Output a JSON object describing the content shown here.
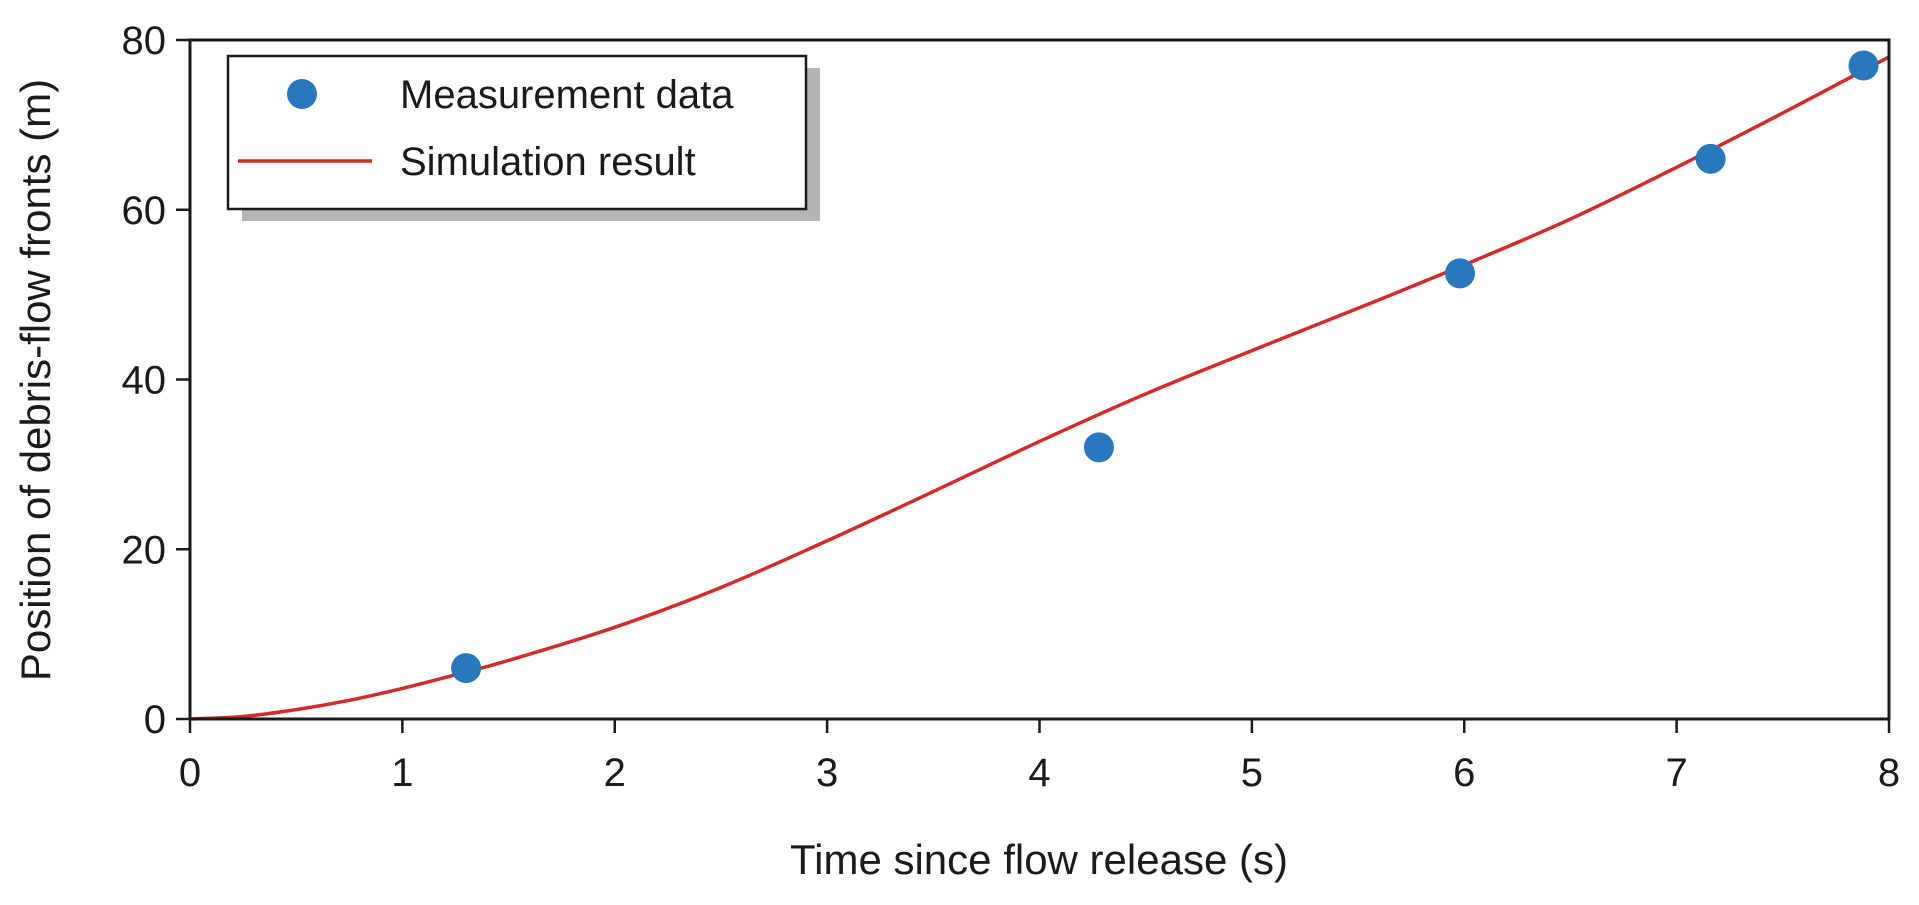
{
  "chart_data": {
    "type": "scatter",
    "xlabel": "Time since flow release (s)",
    "ylabel": "Position of debris-flow fronts (m)",
    "xlim": [
      0,
      8
    ],
    "ylim": [
      0,
      80
    ],
    "xticks": [
      0,
      1,
      2,
      3,
      4,
      5,
      6,
      7,
      8
    ],
    "yticks": [
      0,
      20,
      40,
      60,
      80
    ],
    "grid": false,
    "legend_position": "top-left",
    "series": [
      {
        "name": "Measurement data",
        "kind": "scatter",
        "color": "#2878bd",
        "points": [
          {
            "x": 1.3,
            "y": 6
          },
          {
            "x": 4.28,
            "y": 32
          },
          {
            "x": 5.98,
            "y": 52.5
          },
          {
            "x": 7.16,
            "y": 66
          },
          {
            "x": 7.88,
            "y": 77
          }
        ]
      },
      {
        "name": "Simulation result",
        "kind": "line",
        "color": "#d42a2a",
        "points": [
          {
            "x": 0,
            "y": 0
          },
          {
            "x": 0.25,
            "y": 0.3
          },
          {
            "x": 0.5,
            "y": 1.1
          },
          {
            "x": 0.75,
            "y": 2.2
          },
          {
            "x": 1.0,
            "y": 3.6
          },
          {
            "x": 1.25,
            "y": 5.2
          },
          {
            "x": 1.5,
            "y": 6.9
          },
          {
            "x": 2.0,
            "y": 10.8
          },
          {
            "x": 2.5,
            "y": 15.5
          },
          {
            "x": 3.0,
            "y": 21.0
          },
          {
            "x": 3.5,
            "y": 26.8
          },
          {
            "x": 4.0,
            "y": 32.7
          },
          {
            "x": 4.5,
            "y": 38.3
          },
          {
            "x": 5.0,
            "y": 43.4
          },
          {
            "x": 5.5,
            "y": 48.4
          },
          {
            "x": 6.0,
            "y": 53.5
          },
          {
            "x": 6.5,
            "y": 58.9
          },
          {
            "x": 7.0,
            "y": 65.0
          },
          {
            "x": 7.5,
            "y": 71.4
          },
          {
            "x": 8.0,
            "y": 78.0
          }
        ]
      }
    ]
  }
}
